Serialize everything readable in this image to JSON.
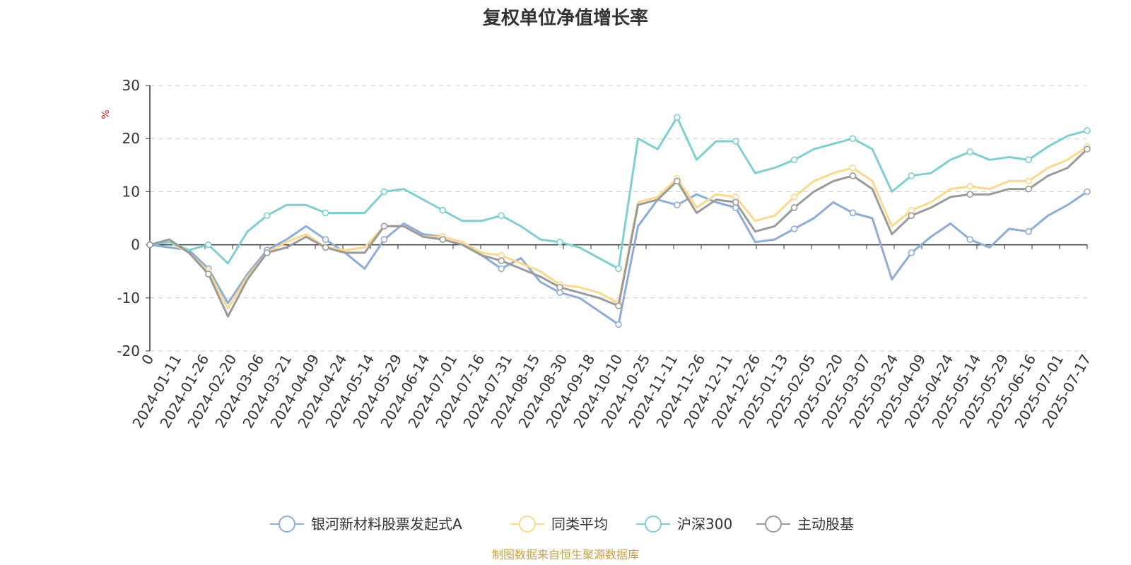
{
  "chart_data": {
    "type": "line",
    "title": "复权单位净值增长率",
    "ylabel": "%",
    "ylim": [
      -20,
      30
    ],
    "yticks": [
      30,
      20,
      10,
      0,
      -10,
      -20
    ],
    "grid": true,
    "legend_position": "bottom",
    "x_tick_labels": [
      "0",
      "2024-01-11",
      "2024-01-26",
      "2024-02-20",
      "2024-03-06",
      "2024-03-21",
      "2024-04-09",
      "2024-04-24",
      "2024-05-14",
      "2024-05-29",
      "2024-06-14",
      "2024-07-01",
      "2024-07-16",
      "2024-07-31",
      "2024-08-15",
      "2024-08-30",
      "2024-09-18",
      "2024-10-10",
      "2024-10-25",
      "2024-11-11",
      "2024-11-26",
      "2024-12-11",
      "2024-12-26",
      "2025-01-13",
      "2025-02-05",
      "2025-02-20",
      "2025-03-07",
      "2025-03-24",
      "2025-04-09",
      "2025-04-24",
      "2025-05-14",
      "2025-05-29",
      "2025-06-16",
      "2025-07-01",
      "2025-07-17"
    ],
    "series": [
      {
        "name": "银河新材料股票发起式A",
        "color": "#8eacd8",
        "values": [
          0,
          -0.5,
          -1.0,
          -4.5,
          -11.0,
          -5.5,
          -1.0,
          1.0,
          3.5,
          1.0,
          -1.5,
          -4.5,
          1.0,
          4.0,
          2.0,
          1.5,
          0.5,
          -2.0,
          -4.5,
          -2.5,
          -7.0,
          -9.0,
          -10.0,
          -12.5,
          -15.0,
          3.5,
          8.5,
          7.5,
          9.5,
          8.0,
          7.0,
          0.5,
          1.0,
          3.0,
          5.0,
          8.0,
          6.0,
          5.0,
          -6.5,
          -1.5,
          1.5,
          4.0,
          1.0,
          -0.5,
          3.0,
          2.5,
          5.5,
          7.5,
          10.0
        ]
      },
      {
        "name": "同类平均",
        "color": "#fad88c",
        "values": [
          0,
          0.5,
          -1.5,
          -5.0,
          -12.0,
          -6.0,
          -1.5,
          0.5,
          2.0,
          -0.5,
          -1.0,
          -0.5,
          3.5,
          3.5,
          1.5,
          1.5,
          0.5,
          -1.5,
          -2.0,
          -3.5,
          -5.0,
          -7.5,
          -8.0,
          -9.0,
          -11.0,
          8.0,
          9.0,
          12.5,
          7.0,
          9.5,
          9.0,
          4.5,
          5.5,
          9.0,
          12.0,
          13.5,
          14.5,
          12.0,
          3.5,
          6.5,
          8.0,
          10.5,
          11.0,
          10.5,
          12.0,
          12.0,
          14.5,
          16.0,
          18.5
        ]
      },
      {
        "name": "沪深300",
        "color": "#7fcfd1",
        "values": [
          0,
          0.5,
          -1.0,
          0.0,
          -3.5,
          2.5,
          5.5,
          7.5,
          7.5,
          6.0,
          6.0,
          6.0,
          10.0,
          10.5,
          8.5,
          6.5,
          4.5,
          4.5,
          5.5,
          3.5,
          1.0,
          0.5,
          -0.5,
          -2.5,
          -4.5,
          20.0,
          18.0,
          24.0,
          16.0,
          19.5,
          19.5,
          13.5,
          14.5,
          16.0,
          18.0,
          19.0,
          20.0,
          18.0,
          10.0,
          13.0,
          13.5,
          16.0,
          17.5,
          16.0,
          16.5,
          16.0,
          18.5,
          20.5,
          21.5
        ]
      },
      {
        "name": "主动股基",
        "color": "#9a9a9a",
        "values": [
          0,
          1.0,
          -1.5,
          -5.5,
          -13.5,
          -6.5,
          -1.5,
          -0.5,
          1.5,
          -0.5,
          -1.5,
          -1.5,
          3.5,
          3.5,
          1.5,
          1.0,
          0.0,
          -2.0,
          -3.0,
          -4.5,
          -6.0,
          -8.0,
          -9.0,
          -10.0,
          -11.5,
          7.5,
          8.5,
          12.0,
          6.0,
          8.5,
          8.0,
          2.5,
          3.5,
          7.0,
          10.0,
          12.0,
          13.0,
          10.5,
          2.0,
          5.5,
          7.0,
          9.0,
          9.5,
          9.5,
          10.5,
          10.5,
          13.0,
          14.5,
          18.0
        ]
      }
    ]
  },
  "source_text": "制图数据来自恒生聚源数据库"
}
